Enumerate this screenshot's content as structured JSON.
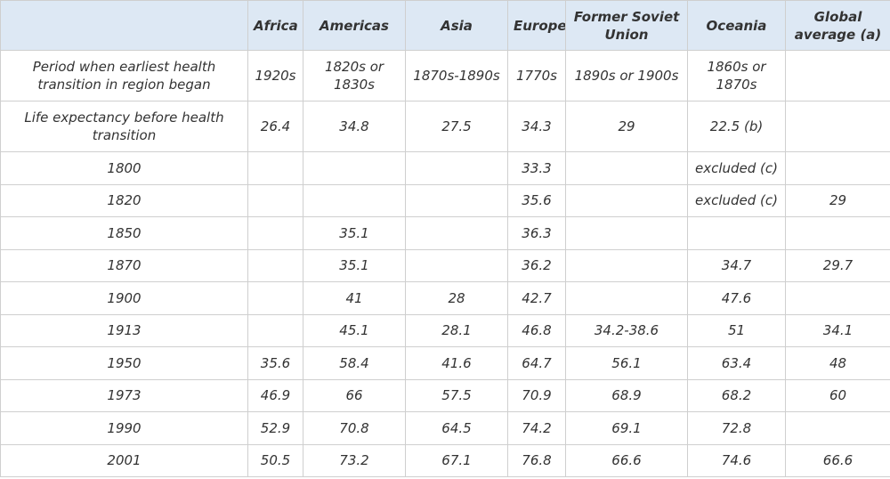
{
  "table": {
    "header": [
      null,
      "Africa",
      "Americas",
      "Asia",
      "Europe",
      "Former Soviet Union",
      "Oceania",
      "Global average (a)"
    ],
    "rows": [
      [
        "Period when earliest health transition in region began",
        "1920s",
        "1820s or 1830s",
        "1870s-1890s",
        "1770s",
        "1890s or 1900s",
        "1860s or 1870s",
        null
      ],
      [
        "Life expectancy before health transition",
        "26.4",
        "34.8",
        "27.5",
        "34.3",
        "29",
        "22.5 (b)",
        null
      ],
      [
        "1800",
        null,
        null,
        null,
        "33.3",
        null,
        "excluded (c)",
        null
      ],
      [
        "1820",
        null,
        null,
        null,
        "35.6",
        null,
        "excluded (c)",
        "29"
      ],
      [
        "1850",
        null,
        "35.1",
        null,
        "36.3",
        null,
        null,
        null
      ],
      [
        "1870",
        null,
        "35.1",
        null,
        "36.2",
        null,
        "34.7",
        "29.7"
      ],
      [
        "1900",
        null,
        "41",
        "28",
        "42.7",
        null,
        "47.6",
        null
      ],
      [
        "1913",
        null,
        "45.1",
        "28.1",
        "46.8",
        "34.2-38.6",
        "51",
        "34.1"
      ],
      [
        "1950",
        "35.6",
        "58.4",
        "41.6",
        "64.7",
        "56.1",
        "63.4",
        "48"
      ],
      [
        "1973",
        "46.9",
        "66",
        "57.5",
        "70.9",
        "68.9",
        "68.2",
        "60"
      ],
      [
        "1990",
        "52.9",
        "70.8",
        "64.5",
        "74.2",
        "69.1",
        "72.8",
        null
      ],
      [
        "2001",
        "50.5",
        "73.2",
        "67.1",
        "76.8",
        "66.6",
        "74.6",
        "66.6"
      ]
    ]
  }
}
